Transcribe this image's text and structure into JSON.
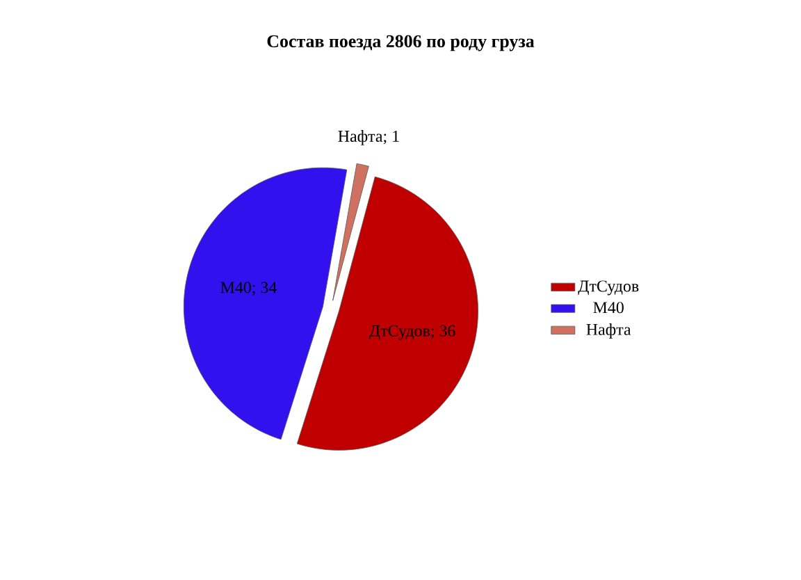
{
  "chart_data": {
    "type": "pie",
    "title": "Состав поезда 2806 по роду груза",
    "categories": [
      "ДтСудов",
      "М40",
      "Нафта"
    ],
    "values": [
      36,
      34,
      1
    ],
    "colors": [
      "#c00000",
      "#3311ee",
      "#d07060"
    ],
    "value_labels": [
      "ДтСудов; 36",
      "М40; 34",
      "Нафта; 1"
    ],
    "legend": "right"
  }
}
